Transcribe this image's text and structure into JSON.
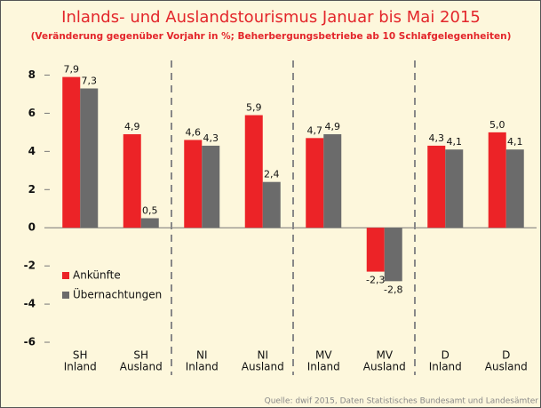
{
  "chart_data": {
    "type": "bar",
    "title": "Inlands- und Auslandstourismus Januar bis Mai 2015",
    "subtitle": "(Veränderung gegenüber Vorjahr in %; Beherbergungsbetriebe ab 10 Schlafgelegenheiten)",
    "categories": [
      [
        "SH",
        "Inland"
      ],
      [
        "SH",
        "Ausland"
      ],
      [
        "NI",
        "Inland"
      ],
      [
        "NI",
        "Ausland"
      ],
      [
        "MV",
        "Inland"
      ],
      [
        "MV",
        "Ausland"
      ],
      [
        "D",
        "Inland"
      ],
      [
        "D",
        "Ausland"
      ]
    ],
    "series": [
      {
        "name": "Ankünfte",
        "color": "#ec2327",
        "values": [
          7.9,
          4.9,
          4.6,
          5.9,
          4.7,
          -2.3,
          4.3,
          5.0
        ],
        "value_labels": [
          "7,9",
          "4,9",
          "4,6",
          "5,9",
          "4,7",
          "-2,3",
          "4,3",
          "5,0"
        ]
      },
      {
        "name": "Übernachtungen",
        "color": "#6b6b6b",
        "values": [
          7.3,
          0.5,
          4.3,
          2.4,
          4.9,
          -2.8,
          4.1,
          4.1
        ],
        "value_labels": [
          "7,3",
          "0,5",
          "4,3",
          "2,4",
          "4,9",
          "-2,8",
          "4,1",
          "4,1"
        ]
      }
    ],
    "ylim": [
      -7,
      9
    ],
    "yticks": [
      -6,
      -4,
      -2,
      0,
      2,
      4,
      6,
      8
    ],
    "legend": "lower-left",
    "source": "Quelle: dwif 2015, Daten Statistisches Bundesamt und Landesämter"
  }
}
